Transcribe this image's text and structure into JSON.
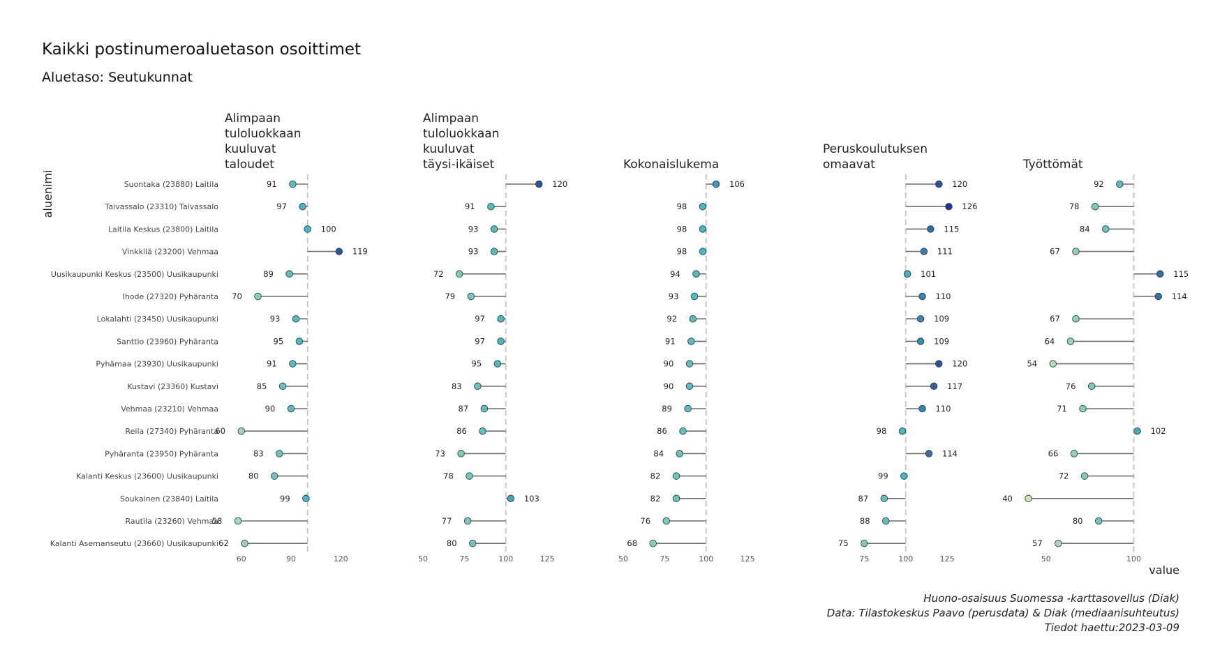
{
  "title": "Kaikki postinumeroaluetason osoittimet",
  "subtitle": "Aluetaso: Seutukunnat",
  "caption": [
    "Huono-osaisuus Suomessa -karttasovellus (Diak)",
    "Data: Tilastokeskus Paavo (perusdata) & Diak (mediaanisuhteutus)",
    "Tiedot haettu:2023-03-09"
  ],
  "chart_data": {
    "type": "lollipop",
    "reference_value": 100,
    "ylabel": "aluenimi",
    "xlabel": "value",
    "regions": [
      "Suontaka (23880) Laitila",
      "Taivassalo (23310) Taivassalo",
      "Laitila Keskus (23800) Laitila",
      "Vinkkilä (23200) Vehmaa",
      "Uusikaupunki Keskus (23500) Uusikaupunki",
      "Ihode (27320) Pyhäranta",
      "Lokalahti (23450) Uusikaupunki",
      "Santtio (23960) Pyhäranta",
      "Pyhämaa (23930) Uusikaupunki",
      "Kustavi (23360) Kustavi",
      "Vehmaa (23210) Vehmaa",
      "Reila (27340) Pyhäranta",
      "Pyhäranta (23950) Pyhäranta",
      "Kalanti Keskus (23600) Uusikaupunki",
      "Soukainen (23840) Laitila",
      "Rautila (23260) Vehmaa",
      "Kalanti Asemanseutu (23660) Uusikaupunki"
    ],
    "facets": [
      {
        "name": [
          "Alimpaan",
          "tuloluokkaan",
          "kuuluvat",
          "taloudet"
        ],
        "xlim": [
          50,
          130
        ],
        "ticks": [
          60,
          90,
          120
        ],
        "values": [
          91,
          97,
          100,
          119,
          89,
          70,
          93,
          95,
          91,
          85,
          90,
          60,
          83,
          80,
          99,
          58,
          62
        ]
      },
      {
        "name": [
          "Alimpaan",
          "tuloluokkaan",
          "kuuluvat",
          "täysi-ikäiset"
        ],
        "xlim": [
          50,
          130
        ],
        "ticks": [
          50,
          75,
          100,
          125
        ],
        "values": [
          120,
          91,
          93,
          93,
          72,
          79,
          97,
          97,
          95,
          83,
          87,
          86,
          73,
          78,
          103,
          77,
          80
        ]
      },
      {
        "name": [
          "Kokonaislukema"
        ],
        "xlim": [
          50,
          130
        ],
        "ticks": [
          50,
          75,
          100,
          125
        ],
        "values": [
          106,
          98,
          98,
          98,
          94,
          93,
          92,
          91,
          90,
          90,
          89,
          86,
          84,
          82,
          82,
          76,
          68
        ]
      },
      {
        "name": [
          "Peruskoulutuksen",
          "omaavat"
        ],
        "xlim": [
          50,
          130
        ],
        "ticks": [
          75,
          100,
          125
        ],
        "values": [
          120,
          126,
          115,
          111,
          101,
          110,
          109,
          109,
          120,
          117,
          110,
          98,
          114,
          99,
          87,
          88,
          75
        ]
      },
      {
        "name": [
          "Työttömät"
        ],
        "xlim": [
          37,
          130
        ],
        "ticks": [
          50,
          100
        ],
        "values": [
          92,
          78,
          84,
          67,
          115,
          114,
          67,
          64,
          54,
          76,
          71,
          102,
          66,
          72,
          40,
          80,
          57
        ]
      }
    ]
  }
}
